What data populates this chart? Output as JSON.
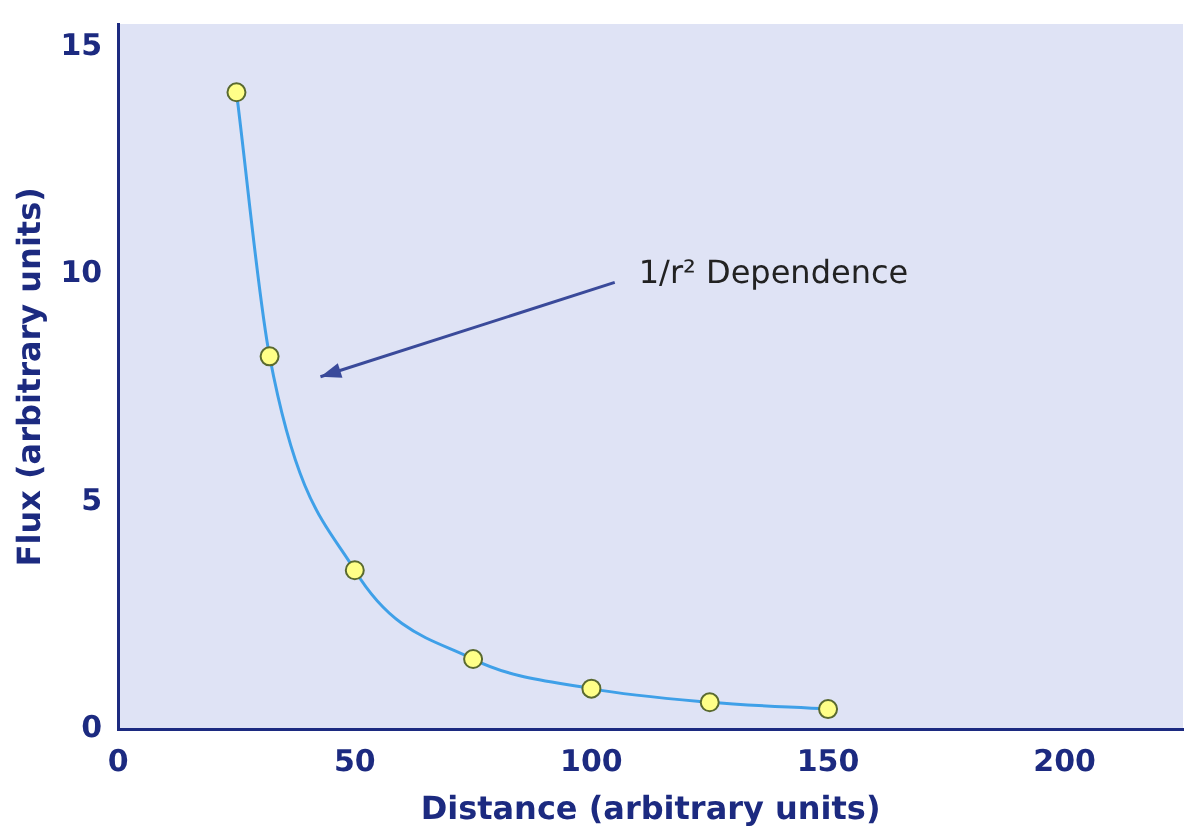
{
  "chart_data": {
    "type": "line",
    "xlabel": "Distance (arbitrary units)",
    "ylabel": "Flux (arbitrary units)",
    "x": [
      25,
      32,
      50,
      75,
      100,
      125,
      150
    ],
    "series": [
      {
        "color": "#3fa0e8",
        "values": [
          14,
          8.2,
          3.5,
          1.55,
          0.9,
          0.6,
          0.45
        ]
      }
    ],
    "xlim": [
      0,
      225
    ],
    "xticks": [
      0,
      50,
      100,
      150,
      200
    ],
    "ylim": [
      0,
      15.5
    ],
    "yticks": [
      0,
      5,
      10,
      15
    ],
    "marker": "circle",
    "grid": false,
    "legend": false,
    "annotations": [
      "1/r² Dependence"
    ]
  }
}
